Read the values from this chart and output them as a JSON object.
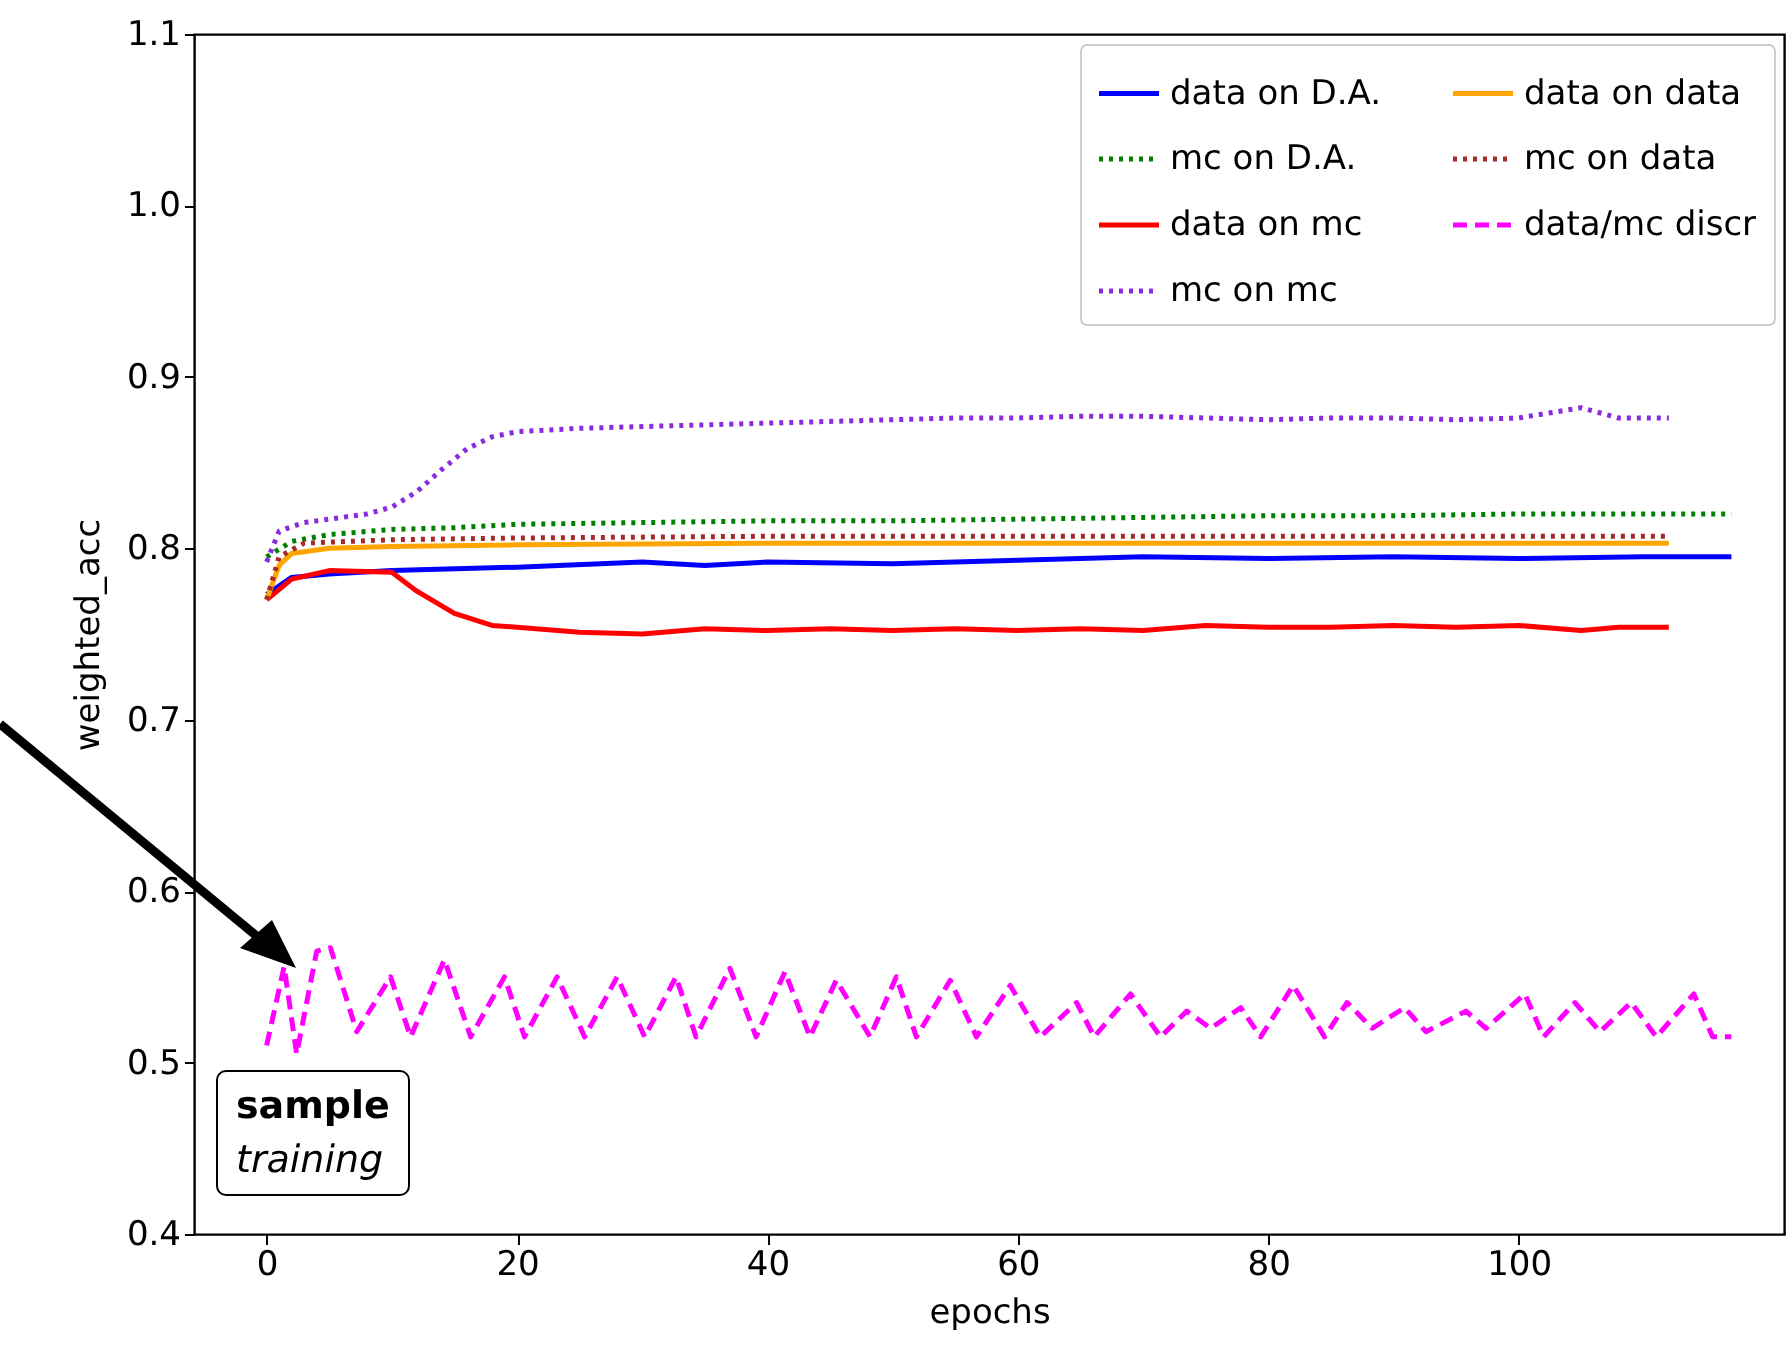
{
  "chart_data": {
    "type": "line",
    "xlabel": "epochs",
    "ylabel": "weighted_acc",
    "xlim": [
      -5.8,
      121.2
    ],
    "xticks": [
      0,
      20,
      40,
      60,
      80,
      100
    ],
    "ylim": [
      0.4,
      1.1
    ],
    "yticks": [
      0.4,
      0.5,
      0.6,
      0.7,
      0.8,
      0.9,
      {
        "value": 1,
        "label": "1.0"
      },
      1.1
    ],
    "grid": false,
    "legend": "top right",
    "marker": "none",
    "annotations": [
      "sample",
      "training"
    ],
    "series": [
      {
        "name": "data on D.A.",
        "color": "#0000ff",
        "line_style": "solid",
        "x": [
          0,
          2,
          5,
          10,
          20,
          30,
          35,
          40,
          50,
          60,
          70,
          80,
          90,
          100,
          110,
          117
        ],
        "values": [
          0.773,
          0.783,
          0.785,
          0.787,
          0.789,
          0.792,
          0.79,
          0.792,
          0.791,
          0.793,
          0.795,
          0.794,
          0.795,
          0.794,
          0.795,
          0.795
        ]
      },
      {
        "name": "mc on D.A.",
        "color": "#008000",
        "line_style": "dotted",
        "x": [
          0,
          2,
          5,
          10,
          15,
          20,
          30,
          40,
          50,
          60,
          70,
          80,
          90,
          100,
          110,
          117
        ],
        "values": [
          0.795,
          0.804,
          0.808,
          0.811,
          0.812,
          0.814,
          0.815,
          0.816,
          0.816,
          0.817,
          0.818,
          0.819,
          0.819,
          0.82,
          0.82,
          0.82
        ]
      },
      {
        "name": "data on mc",
        "color": "#ff0000",
        "line_style": "solid",
        "x": [
          0,
          2,
          5,
          10,
          12,
          15,
          18,
          20,
          25,
          30,
          35,
          40,
          45,
          50,
          55,
          60,
          65,
          70,
          75,
          80,
          85,
          90,
          95,
          100,
          105,
          108,
          112
        ],
        "values": [
          0.77,
          0.782,
          0.787,
          0.786,
          0.775,
          0.762,
          0.755,
          0.754,
          0.751,
          0.75,
          0.753,
          0.752,
          0.753,
          0.752,
          0.753,
          0.752,
          0.753,
          0.752,
          0.755,
          0.754,
          0.754,
          0.755,
          0.754,
          0.755,
          0.752,
          0.754,
          0.754
        ]
      },
      {
        "name": "mc on mc",
        "color": "#8a2be2",
        "line_style": "dotted",
        "x": [
          0,
          1,
          3,
          5,
          8,
          10,
          12,
          14,
          16,
          18,
          20,
          25,
          30,
          35,
          40,
          45,
          50,
          55,
          60,
          65,
          70,
          75,
          80,
          85,
          90,
          95,
          100,
          105,
          108,
          112
        ],
        "values": [
          0.792,
          0.81,
          0.815,
          0.817,
          0.82,
          0.824,
          0.833,
          0.846,
          0.858,
          0.865,
          0.868,
          0.87,
          0.871,
          0.872,
          0.873,
          0.874,
          0.875,
          0.876,
          0.876,
          0.877,
          0.877,
          0.876,
          0.875,
          0.876,
          0.876,
          0.875,
          0.876,
          0.882,
          0.876,
          0.876
        ]
      },
      {
        "name": "data on data",
        "color": "#ffa500",
        "line_style": "solid",
        "x": [
          0,
          1,
          2,
          5,
          10,
          20,
          40,
          60,
          80,
          100,
          112
        ],
        "values": [
          0.77,
          0.79,
          0.797,
          0.8,
          0.801,
          0.802,
          0.803,
          0.803,
          0.803,
          0.803,
          0.803
        ]
      },
      {
        "name": "mc on data",
        "color": "#a52a2a",
        "line_style": "dotted",
        "x": [
          0,
          1,
          3,
          10,
          20,
          40,
          60,
          80,
          100,
          112
        ],
        "values": [
          0.77,
          0.795,
          0.803,
          0.805,
          0.806,
          0.807,
          0.807,
          0.807,
          0.807,
          0.807
        ]
      },
      {
        "name": "data/mc discr",
        "color": "#ff00ff",
        "line_style": "dashed",
        "x": [
          0,
          1.4,
          2.4,
          4,
          5.1,
          7.2,
          9.9,
          11.5,
          14.2,
          16.3,
          19,
          20.6,
          23.2,
          25.4,
          28,
          30.2,
          32.7,
          34.3,
          37,
          39.1,
          41.4,
          43.4,
          45.5,
          48.2,
          50.3,
          51.9,
          54.6,
          56.7,
          59.4,
          61.8,
          64.7,
          66.1,
          69,
          71.4,
          73.5,
          75.4,
          77.8,
          79.4,
          82,
          84.5,
          86.3,
          88.3,
          90.9,
          92.6,
          95.8,
          97.4,
          100.5,
          102,
          104.5,
          106.5,
          109,
          111,
          114,
          115.5,
          117
        ],
        "values": [
          0.51,
          0.556,
          0.505,
          0.565,
          0.567,
          0.518,
          0.55,
          0.515,
          0.56,
          0.515,
          0.55,
          0.515,
          0.55,
          0.515,
          0.55,
          0.515,
          0.55,
          0.515,
          0.555,
          0.515,
          0.553,
          0.515,
          0.548,
          0.515,
          0.55,
          0.515,
          0.548,
          0.515,
          0.545,
          0.515,
          0.535,
          0.515,
          0.54,
          0.515,
          0.53,
          0.52,
          0.532,
          0.515,
          0.545,
          0.515,
          0.535,
          0.52,
          0.532,
          0.518,
          0.53,
          0.52,
          0.54,
          0.515,
          0.535,
          0.518,
          0.535,
          0.515,
          0.54,
          0.515,
          0.515
        ]
      }
    ]
  }
}
